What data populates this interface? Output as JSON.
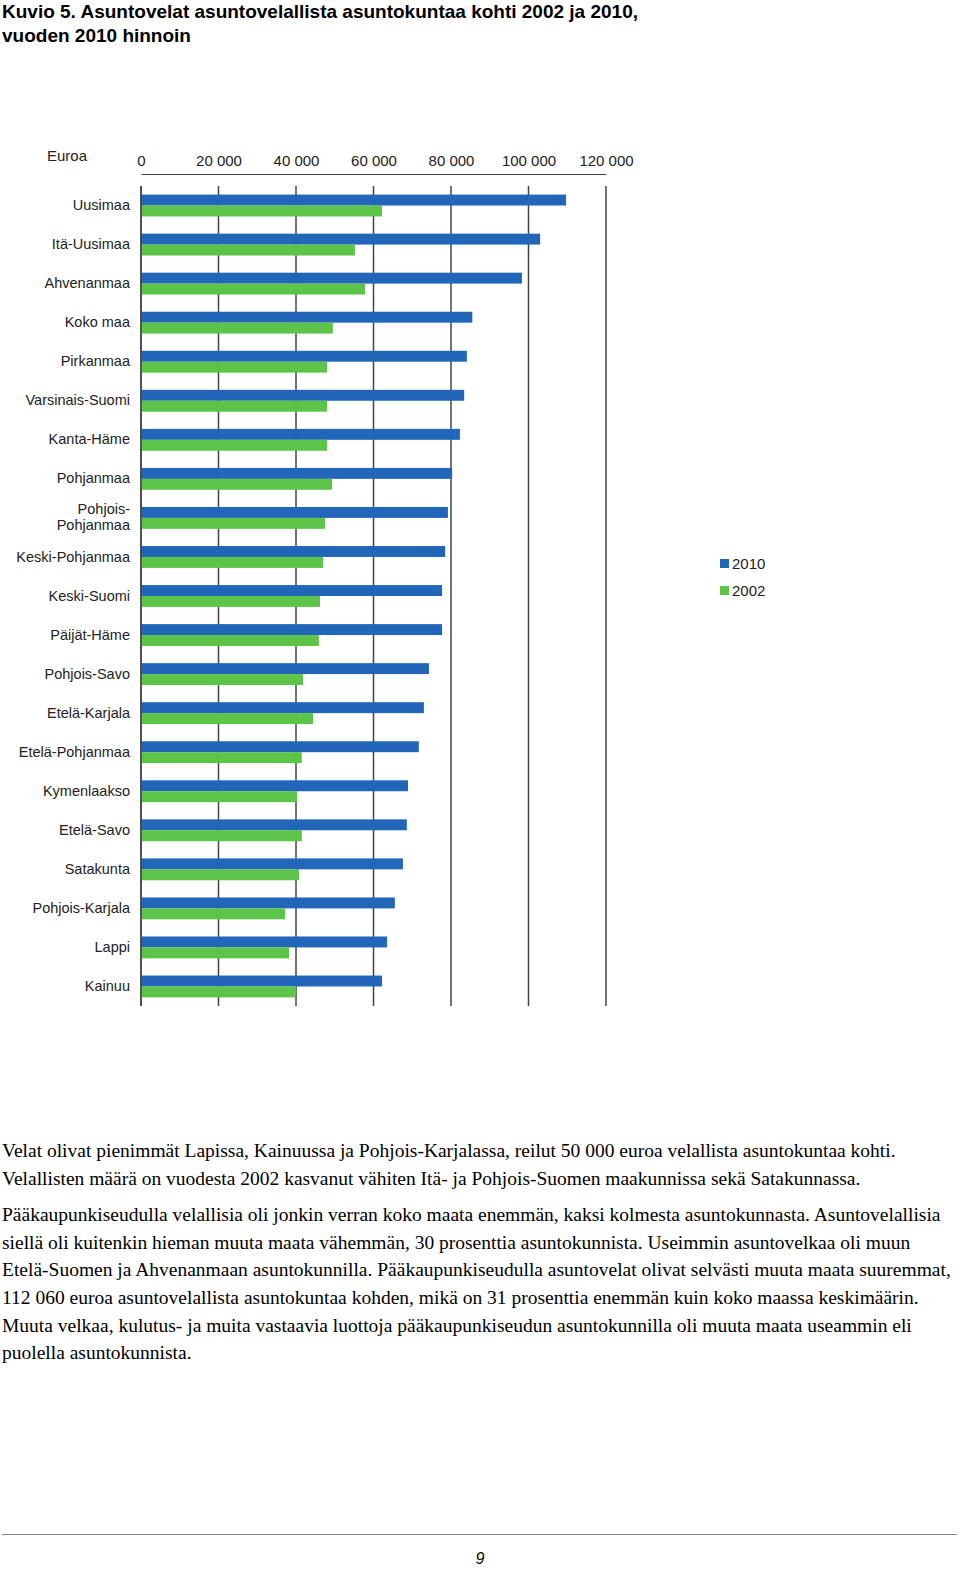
{
  "chart_data": {
    "type": "bar",
    "orientation": "horizontal",
    "title": "Kuvio 5. Asuntovelat asuntovelallista asuntokuntaa kohti 2002 ja 2010, vuoden 2010 hinnoin",
    "x_label": "Euroa",
    "categories": [
      "Uusimaa",
      "Itä-Uusimaa",
      "Ahvenanmaa",
      "Koko maa",
      "Pirkanmaa",
      "Varsinais-Suomi",
      "Kanta-Häme",
      "Pohjanmaa",
      "Pohjois-Pohjanmaa",
      "Keski-Pohjanmaa",
      "Keski-Suomi",
      "Päijät-Häme",
      "Pohjois-Savo",
      "Etelä-Karjala",
      "Etelä-Pohjanmaa",
      "Kymenlaakso",
      "Etelä-Savo",
      "Satakunta",
      "Pohjois-Karjala",
      "Lappi",
      "Kainuu"
    ],
    "series": [
      {
        "name": "2010",
        "color": "#2166b8",
        "values": [
          109700,
          103000,
          98300,
          85500,
          84100,
          83400,
          82300,
          80300,
          79200,
          78500,
          77700,
          77700,
          74300,
          73000,
          71700,
          68900,
          68600,
          67600,
          65500,
          63500,
          62200
        ]
      },
      {
        "name": "2002",
        "color": "#5cc448",
        "values": [
          62200,
          55200,
          57800,
          49500,
          48000,
          48000,
          48000,
          49300,
          47500,
          47000,
          46200,
          45900,
          41800,
          44400,
          41500,
          40300,
          41500,
          40800,
          37200,
          38200,
          40000
        ]
      }
    ],
    "xlim": [
      0,
      120000
    ],
    "xticks": [
      0,
      {
        "value": 20000,
        "label": "20 000"
      },
      {
        "value": 40000,
        "label": "40 000"
      },
      {
        "value": 60000,
        "label": "60 000"
      },
      {
        "value": 80000,
        "label": "80 000"
      },
      {
        "value": 100000,
        "label": "100 000"
      },
      {
        "value": 120000,
        "label": "120 000"
      }
    ],
    "grid": true,
    "legend": "right"
  },
  "text": {
    "paragraphs": [
      "Velat olivat pienimmät Lapissa, Kainuussa ja Pohjois-Karjalassa, reilut 50 000 euroa velallista asuntokuntaa kohti. Velallisten määrä on vuodesta 2002 kasvanut vähiten Itä- ja Pohjois-Suomen maakunnissa sekä Satakunnassa.",
      "Pääkaupunkiseudulla velallisia oli jonkin verran koko maata enemmän, kaksi kolmesta asuntokunnasta. Asuntovelallisia siellä oli kuitenkin hieman muuta maata vähemmän, 30 prosenttia asuntokunnista. Useimmin asuntovelkaa oli muun Etelä-Suomen ja Ahvenanmaan asuntokunnilla. Pääkaupunkiseudulla asuntovelat olivat selvästi muuta maata suuremmat, 112 060 euroa asuntovelallista asuntokuntaa kohden, mikä on 31 prosenttia enemmän kuin koko maassa keskimäärin. Muuta velkaa, kulutus- ja muita vastaavia luottoja pääkaupunkiseudun asuntokunnilla oli muuta maata useammin eli puolella asuntokunnista."
    ],
    "page_number": "9"
  }
}
